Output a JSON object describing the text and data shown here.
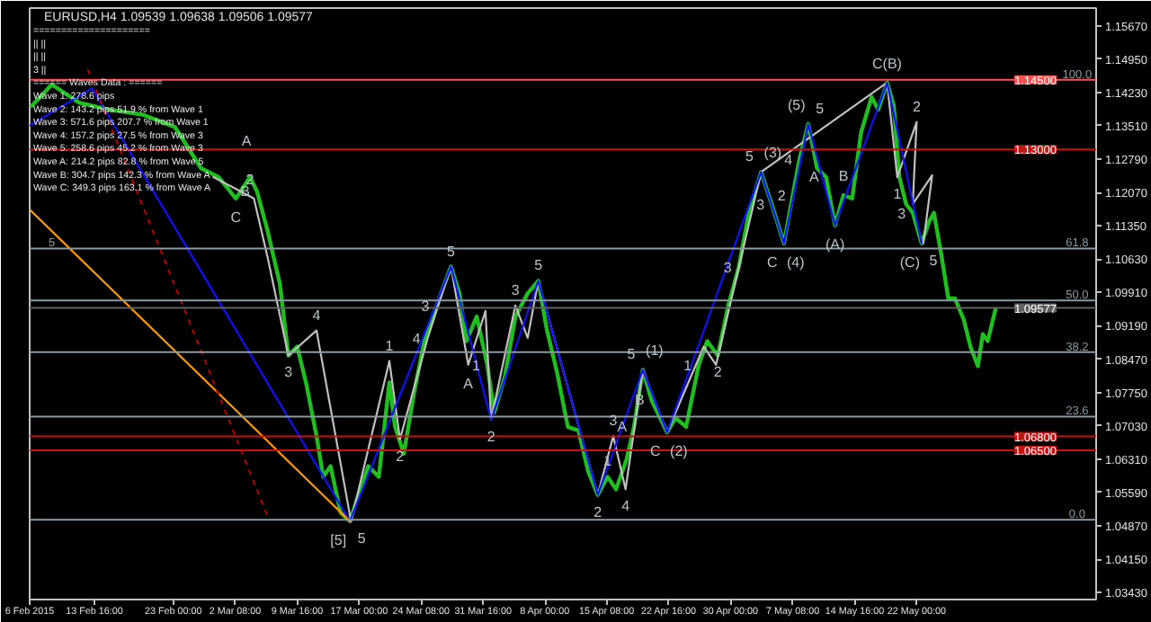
{
  "chart_data": {
    "type": "line",
    "title": "EURUSD,H4 1.09539 1.09638 1.09506 1.09577",
    "xlim": [
      "2015-02-06T00:00",
      "2015-06-12T06:00"
    ],
    "xticks": [
      {
        "value": "2015-02-06T00:00",
        "label": "6 Feb 2015"
      },
      {
        "value": "2015-02-13T16:00",
        "label": "13 Feb 16:00"
      },
      {
        "value": "2015-02-23T00:00",
        "label": "23 Feb 00:00"
      },
      {
        "value": "2015-03-02T08:00",
        "label": "2 Mar 08:00"
      },
      {
        "value": "2015-03-09T16:00",
        "label": "9 Mar 16:00"
      },
      {
        "value": "2015-03-17T00:00",
        "label": "17 Mar 00:00"
      },
      {
        "value": "2015-03-24T08:00",
        "label": "24 Mar 08:00"
      },
      {
        "value": "2015-03-31T16:00",
        "label": "31 Mar 16:00"
      },
      {
        "value": "2015-04-08T00:00",
        "label": "8 Apr 00:00"
      },
      {
        "value": "2015-04-15T08:00",
        "label": "15 Apr 08:00"
      },
      {
        "value": "2015-04-22T16:00",
        "label": "22 Apr 16:00"
      },
      {
        "value": "2015-04-30T00:00",
        "label": "30 Apr 00:00"
      },
      {
        "value": "2015-05-07T08:00",
        "label": "7 May 08:00"
      },
      {
        "value": "2015-05-14T16:00",
        "label": "14 May 16:00"
      },
      {
        "value": "2015-05-22T00:00",
        "label": "22 May 00:00"
      }
    ],
    "ylim": [
      1.0328,
      1.1605
    ],
    "yticks": [
      {
        "value": 1.1567,
        "label": "1.15670"
      },
      {
        "value": 1.1495,
        "label": "1.14950"
      },
      {
        "value": 1.1423,
        "label": "1.14230"
      },
      {
        "value": 1.1351,
        "label": "1.13510"
      },
      {
        "value": 1.1279,
        "label": "1.12790"
      },
      {
        "value": 1.1207,
        "label": "1.12070"
      },
      {
        "value": 1.1135,
        "label": "1.11350"
      },
      {
        "value": 1.1063,
        "label": "1.10630"
      },
      {
        "value": 1.0991,
        "label": "1.09910"
      },
      {
        "value": 1.0919,
        "label": "1.09190"
      },
      {
        "value": 1.0847,
        "label": "1.08470"
      },
      {
        "value": 1.0775,
        "label": "1.07750"
      },
      {
        "value": 1.0703,
        "label": "1.07030"
      },
      {
        "value": 1.0631,
        "label": "1.06310"
      },
      {
        "value": 1.0559,
        "label": "1.05590"
      },
      {
        "value": 1.0487,
        "label": "1.04870"
      },
      {
        "value": 1.0415,
        "label": "1.04150"
      },
      {
        "value": 1.0343,
        "label": "1.03430"
      }
    ],
    "series": [
      {
        "color": "#1fbf1f",
        "x": [
          "2015-02-06T06:00",
          "2015-02-08T15:00",
          "2015-02-11T20:00",
          "2015-02-15T08:00",
          "2015-02-19T09:00",
          "2015-02-23T05:00",
          "2015-02-26T07:00",
          "2015-02-28T09:00",
          "2015-03-02T10:00",
          "2015-03-04T02:00",
          "2015-03-04T22:00",
          "2015-03-06T04:00",
          "2015-03-07T15:00",
          "2015-03-08T15:00",
          "2015-03-09T16:00",
          "2015-03-10T17:00",
          "2015-03-11T23:00",
          "2015-03-12T18:00",
          "2015-03-13T15:00",
          "2015-03-14T19:00",
          "2015-03-15T22:00",
          "2015-03-16T22:00",
          "2015-03-18T02:00",
          "2015-03-19T08:00",
          "2015-03-20T14:00",
          "2015-03-21T06:00",
          "2015-03-22T07:00",
          "2015-03-23T13:00",
          "2015-03-24T19:00",
          "2015-03-26T04:00",
          "2015-03-27T21:00",
          "2015-03-28T21:00",
          "2015-03-29T17:00",
          "2015-03-30T22:00",
          "2015-04-01T04:00",
          "2015-04-02T00:00",
          "2015-04-03T06:00",
          "2015-04-04T12:00",
          "2015-04-05T23:00",
          "2015-04-07T05:00",
          "2015-04-08T05:00",
          "2015-04-09T11:00",
          "2015-04-10T17:00",
          "2015-04-11T23:00",
          "2015-04-13T03:00",
          "2015-04-14T06:00",
          "2015-04-15T10:00",
          "2015-04-16T10:00",
          "2015-04-17T16:00",
          "2015-04-18T13:00",
          "2015-04-19T14:00",
          "2015-04-20T15:00",
          "2015-04-22T11:00",
          "2015-04-23T11:00",
          "2015-04-24T17:00",
          "2015-04-26T05:00",
          "2015-04-27T05:00",
          "2015-04-28T11:00",
          "2015-04-29T17:00",
          "2015-04-30T23:00",
          "2015-05-02T05:00",
          "2015-05-03T14:00",
          "2015-05-04T20:00",
          "2015-05-06T07:00",
          "2015-05-07T08:00",
          "2015-05-08T03:00",
          "2015-05-09T04:00",
          "2015-05-10T05:00",
          "2015-05-11T07:00",
          "2015-05-12T08:00",
          "2015-05-13T08:00",
          "2015-05-14T09:00",
          "2015-05-15T10:00",
          "2015-05-16T16:00",
          "2015-05-17T11:00",
          "2015-05-18T12:00",
          "2015-05-19T07:00",
          "2015-05-19T23:00",
          "2015-05-20T18:00",
          "2015-05-21T13:00",
          "2015-05-22T14:00",
          "2015-05-23T11:00",
          "2015-05-24T01:00",
          "2015-05-24T21:00",
          "2015-05-25T18:00",
          "2015-05-26T13:00",
          "2015-05-27T14:00",
          "2015-05-28T09:00",
          "2015-05-29T06:00",
          "2015-05-29T20:00",
          "2015-05-30T10:00",
          "2015-05-31T08:00"
        ],
        "values": [
          1.1394,
          1.144,
          1.1401,
          1.1386,
          1.1375,
          1.1348,
          1.1259,
          1.124,
          1.1194,
          1.124,
          1.1209,
          1.1124,
          1.1009,
          1.0855,
          1.0874,
          1.0797,
          1.0681,
          1.0593,
          1.0616,
          1.0516,
          1.0497,
          1.0554,
          1.0616,
          1.0593,
          1.0797,
          1.0701,
          1.0643,
          1.0778,
          1.0893,
          1.0963,
          1.1047,
          1.0989,
          1.0886,
          1.0939,
          1.0835,
          1.0732,
          1.0809,
          1.0939,
          1.0989,
          1.1016,
          1.0912,
          1.0816,
          1.0701,
          1.0693,
          1.0604,
          1.0554,
          1.0593,
          1.0566,
          1.0631,
          1.0701,
          1.0824,
          1.0758,
          1.0689,
          1.072,
          1.0701,
          1.0835,
          1.0886,
          1.0855,
          1.0963,
          1.1047,
          1.117,
          1.1251,
          1.1182,
          1.1097,
          1.1201,
          1.1278,
          1.1355,
          1.1259,
          1.124,
          1.1136,
          1.1201,
          1.1194,
          1.1336,
          1.1413,
          1.1386,
          1.1444,
          1.1394,
          1.124,
          1.1182,
          1.1163,
          1.1097,
          1.1143,
          1.1163,
          1.1078,
          1.0978,
          1.0978,
          1.0932,
          1.0874,
          1.0832,
          1.0901,
          1.0886,
          1.0955
        ]
      },
      {
        "color": "#c0c0c0",
        "x": [
          "2015-02-27T18:00",
          "2015-03-04T13:00",
          "2015-03-06T04:00",
          "2015-03-08T15:00",
          "2015-03-11T23:00",
          "2015-03-16T01:00",
          "2015-03-20T14:00",
          "2015-03-21T20:00",
          "2015-03-25T03:00",
          "2015-03-27T21:00",
          "2015-03-29T22:00",
          "2015-03-31T23:00",
          "2015-04-01T15:00",
          "2015-04-04T12:00",
          "2015-04-05T23:00",
          "2015-04-07T05:00",
          "2015-04-14T06:00",
          "2015-04-16T02:00",
          "2015-04-17T13:00",
          "2015-04-19T14:00",
          "2015-04-22T11:00",
          "2015-04-26T19:00",
          "2015-04-28T06:00",
          "2015-05-03T14:00",
          "2015-05-18T12:00",
          "2015-05-19T17:00",
          "2015-05-22T00:00",
          "2015-05-21T13:00",
          "2015-05-23T20:00",
          "2015-05-22T19:00"
        ],
        "values": [
          1.124,
          1.1194,
          1.1067,
          1.0855,
          1.0909,
          1.0497,
          1.0843,
          1.0674,
          1.0893,
          1.1047,
          1.0835,
          1.0951,
          1.0716,
          1.0963,
          1.0893,
          1.1016,
          1.0554,
          1.0681,
          1.0566,
          1.0824,
          1.0689,
          1.0874,
          1.0835,
          1.1251,
          1.1444,
          1.124,
          1.1359,
          1.1182,
          1.1244,
          1.1097
        ]
      },
      {
        "color": "#1010ff",
        "x": [
          "2015-02-06T00:00",
          "2015-02-13T09:00",
          "2015-03-15T22:00",
          "2015-03-27T21:00",
          "2015-04-01T15:00",
          "2015-04-07T05:00",
          "2015-04-14T06:00",
          "2015-04-19T14:00",
          "2015-04-22T11:00",
          "2015-05-03T14:00",
          "2015-05-06T07:00",
          "2015-05-09T04:00",
          "2015-05-12T08:00",
          "2015-05-18T12:00",
          "2015-05-22T14:00"
        ],
        "values": [
          1.1351,
          1.1432,
          1.0497,
          1.1047,
          1.0716,
          1.1016,
          1.0554,
          1.0824,
          1.0689,
          1.1251,
          1.1097,
          1.1355,
          1.1136,
          1.1444,
          1.1097
        ]
      },
      {
        "color": "#ff9900",
        "x": [
          "2015-02-06T00:00",
          "2015-03-15T22:00"
        ],
        "values": [
          1.117,
          1.0497
        ]
      },
      {
        "color": "#b00000",
        "line_style": "dotted",
        "x": [
          "2015-02-12T22:00",
          "2015-03-06T04:00"
        ],
        "values": [
          1.1471,
          1.0508
        ]
      }
    ],
    "ref_lines": [
      {
        "axis": "y",
        "value": 1.145,
        "label": "1.14500",
        "color": "#ff5050"
      },
      {
        "axis": "y",
        "value": 1.13,
        "label": "1.13000",
        "color": "#cc1010"
      },
      {
        "axis": "y",
        "value": 1.068,
        "label": "1.06800",
        "color": "#cc1010"
      },
      {
        "axis": "y",
        "value": 1.065,
        "label": "1.06500",
        "color": "#cc1010"
      },
      {
        "axis": "y",
        "value": 1.09577,
        "label": "1.09577",
        "color": "#606060"
      },
      {
        "axis": "y",
        "value": 1.1086,
        "color": "#8a9aa0"
      },
      {
        "axis": "y",
        "value": 1.0974,
        "color": "#8a9aa0"
      },
      {
        "axis": "y",
        "value": 1.0862,
        "color": "#8a9aa0"
      },
      {
        "axis": "y",
        "value": 1.0723,
        "color": "#8a9aa0"
      },
      {
        "axis": "y",
        "value": 1.05,
        "color": "#8a9aa0"
      }
    ],
    "annotations": [
      "=====================",
      "||                                                ||",
      "||                                                ||",
      "3                                                 ||",
      "====== Waves Data : ======",
      "Wave 1: 278.6 pips",
      "Wave 2: 143.2 pips 51.9 % from Wave 1",
      "Wave 3: 571.6 pips 207.7 % from Wave 1",
      "Wave 4: 157.2 pips 27.5 % from Wave 3",
      "Wave 5: 258.6 pips 45.2 % from Wave 3",
      "Wave A: 214.2 pips 82.8 % from Wave 5",
      "Wave B: 304.7 pips 142.3 % from Wave A",
      "Wave C: 349.3 pips 163.1 % from Wave A",
      {
        "text": "100.0",
        "x": "2015-06-10T00:00",
        "y": 1.145
      },
      {
        "text": "61.8",
        "x": "2015-06-10T00:00",
        "y": 1.1086
      },
      {
        "text": "50.0",
        "x": "2015-06-10T00:00",
        "y": 1.0974
      },
      {
        "text": "38.2",
        "x": "2015-06-10T00:00",
        "y": 1.0862
      },
      {
        "text": "23.6",
        "x": "2015-06-10T00:00",
        "y": 1.0723
      },
      {
        "text": "0.0",
        "x": "2015-06-10T00:00",
        "y": 1.05
      },
      {
        "text": "5",
        "x": "2015-02-08T15:00",
        "y": 1.1086
      },
      {
        "text": "[5]",
        "x": "2015-03-15T22:00",
        "y": 1.0497
      },
      {
        "text": "5",
        "x": "2015-03-15T22:00",
        "y": 1.0497
      },
      {
        "text": "3",
        "x": "2015-03-08T15:00",
        "y": 1.0855
      },
      {
        "text": "4",
        "x": "2015-03-11T23:00",
        "y": 1.0909
      },
      {
        "text": "1",
        "x": "2015-03-20T14:00",
        "y": 1.0843
      },
      {
        "text": "2",
        "x": "2015-03-21T20:00",
        "y": 1.0674
      },
      {
        "text": "3",
        "x": "2015-03-26T04:00",
        "y": 1.0963
      },
      {
        "text": "4",
        "x": "2015-03-25T03:00",
        "y": 1.0893
      },
      {
        "text": "5",
        "x": "2015-03-27T21:00",
        "y": 1.1047
      },
      {
        "text": "A",
        "x": "2015-03-29T22:00",
        "y": 1.0835
      },
      {
        "text": "3",
        "x": "2015-04-04T12:00",
        "y": 1.0963
      },
      {
        "text": "1",
        "x": "2015-04-01T04:00",
        "y": 1.0835
      },
      {
        "text": "2",
        "x": "2015-04-01T15:00",
        "y": 1.0716
      },
      {
        "text": "5",
        "x": "2015-04-07T05:00",
        "y": 1.1016
      },
      {
        "text": "1",
        "x": "2015-04-15T10:00",
        "y": 1.0593
      },
      {
        "text": "2",
        "x": "2015-04-14T06:00",
        "y": 1.0554
      },
      {
        "text": "3",
        "x": "2015-04-16T02:00",
        "y": 1.0681
      },
      {
        "text": "4",
        "x": "2015-04-17T13:00",
        "y": 1.0566
      },
      {
        "text": "5",
        "x": "2015-04-19T14:00",
        "y": 1.0824
      },
      {
        "text": "(1)",
        "x": "2015-04-19T14:00",
        "y": 1.0824
      },
      {
        "text": "A",
        "x": "2015-04-18T13:00",
        "y": 1.0701
      },
      {
        "text": "B",
        "x": "2015-04-20T15:00",
        "y": 1.0758
      },
      {
        "text": "C",
        "x": "2015-04-22T11:00",
        "y": 1.0689
      },
      {
        "text": "(2)",
        "x": "2015-04-22T11:00",
        "y": 1.0689
      },
      {
        "text": "1",
        "x": "2015-04-26T05:00",
        "y": 1.0835
      },
      {
        "text": "2",
        "x": "2015-04-28T11:00",
        "y": 1.0855
      },
      {
        "text": "3",
        "x": "2015-04-30T23:00",
        "y": 1.1047
      },
      {
        "text": "5",
        "x": "2015-05-03T14:00",
        "y": 1.1251
      },
      {
        "text": "(3)",
        "x": "2015-05-03T14:00",
        "y": 1.1251
      },
      {
        "text": "3",
        "x": "2015-05-04T20:00",
        "y": 1.1182
      },
      {
        "text": "C",
        "x": "2015-05-06T07:00",
        "y": 1.1097
      },
      {
        "text": "(4)",
        "x": "2015-05-06T07:00",
        "y": 1.1097
      },
      {
        "text": "2",
        "x": "2015-05-07T08:00",
        "y": 1.1201
      },
      {
        "text": "4",
        "x": "2015-05-08T03:00",
        "y": 1.1278
      },
      {
        "text": "(5)",
        "x": "2015-05-09T04:00",
        "y": 1.1355
      },
      {
        "text": "5",
        "x": "2015-05-09T04:00",
        "y": 1.1355
      },
      {
        "text": "A",
        "x": "2015-05-11T07:00",
        "y": 1.124
      },
      {
        "text": "B",
        "x": "2015-05-13T08:00",
        "y": 1.1201
      },
      {
        "text": "(A)",
        "x": "2015-05-12T08:00",
        "y": 1.1136
      },
      {
        "text": "C(B)",
        "x": "2015-05-18T12:00",
        "y": 1.1444
      },
      {
        "text": "2",
        "x": "2015-05-22T00:00",
        "y": 1.1359
      },
      {
        "text": "1",
        "x": "2015-05-19T17:00",
        "y": 1.124
      },
      {
        "text": "3",
        "x": "2015-05-21T13:00",
        "y": 1.1163
      },
      {
        "text": "(C)",
        "x": "2015-05-22T14:00",
        "y": 1.1097
      },
      {
        "text": "5",
        "x": "2015-05-22T14:00",
        "y": 1.1097
      },
      {
        "text": "C",
        "x": "2015-03-02T10:00",
        "y": 1.1194
      },
      {
        "text": "A",
        "x": "2015-03-03T16:00",
        "y": 1.1317
      },
      {
        "text": "B",
        "x": "2015-03-04T22:00",
        "y": 1.1209
      },
      {
        "text": "2",
        "x": "2015-03-04T02:00",
        "y": 1.1236
      }
    ]
  }
}
